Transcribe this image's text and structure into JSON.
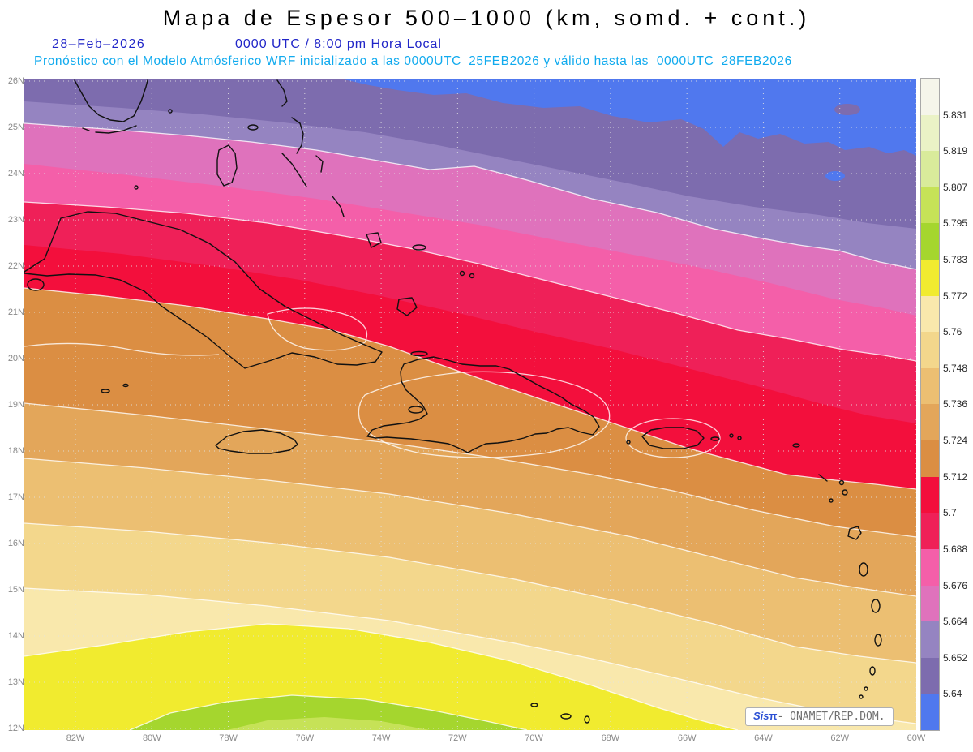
{
  "header": {
    "title": "Mapa de Espesor 500–1000 (km, somd. + cont.)",
    "date": "28–Feb–2026",
    "time": "0000 UTC / 8:00 pm Hora Local",
    "forecast": "Pronóstico con el Modelo Atmósferico WRF inicializado a las 0000UTC_25FEB2026 y válido hasta las  0000UTC_28FEB2026"
  },
  "axes": {
    "lat_labels": [
      "26N",
      "25N",
      "24N",
      "23N",
      "22N",
      "21N",
      "20N",
      "19N",
      "18N",
      "17N",
      "16N",
      "15N",
      "14N",
      "13N",
      "12N"
    ],
    "lon_labels": [
      "82W",
      "80W",
      "78W",
      "76W",
      "74W",
      "72W",
      "70W",
      "68W",
      "66W",
      "64W",
      "62W",
      "60W"
    ]
  },
  "colorbar": {
    "labels": [
      "5.831",
      "5.819",
      "5.807",
      "5.795",
      "5.783",
      "5.772",
      "5.76",
      "5.748",
      "5.736",
      "5.724",
      "5.712",
      "5.7",
      "5.688",
      "5.676",
      "5.664",
      "5.652",
      "5.64"
    ],
    "colors": [
      "#f5f5ea",
      "#eaf2c6",
      "#d9eb9b",
      "#c6e257",
      "#a5d62e",
      "#f1eb2f",
      "#f9e8ac",
      "#f3d78c",
      "#ecbf72",
      "#e3a65a",
      "#db8e43",
      "#f30f3c",
      "#ef2058",
      "#f45fa9",
      "#df72bc",
      "#9584c1",
      "#7d6cae",
      "#5078ee"
    ]
  },
  "credit": {
    "brand_prefix": "Sis",
    "brand_symbol": "π",
    "suffix": "- ONAMET/REP.DOM."
  }
}
